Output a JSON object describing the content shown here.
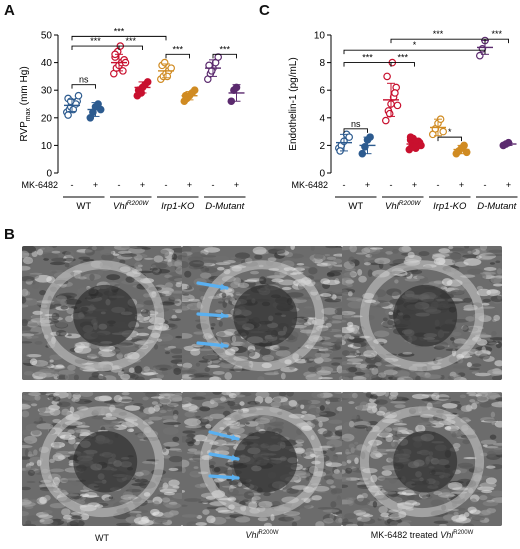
{
  "panels": {
    "a": "A",
    "b": "B",
    "c": "C"
  },
  "colors": {
    "wt": "#2d5b8f",
    "vhl": "#c8102e",
    "irp": "#d08b22",
    "dmut": "#5b2a6e"
  },
  "chart_data": [
    {
      "type": "scatter",
      "panel": "A",
      "ylabel_main": "RVP",
      "ylabel_sub": "max",
      "ylabel_unit": " (mm Hg)",
      "ylim": [
        0,
        50
      ],
      "yticks": [
        "0",
        "10",
        "20",
        "30",
        "40",
        "50"
      ],
      "treatment_label": "MK-6482",
      "treatment_signs": [
        "-",
        "+",
        "-",
        "+",
        "-",
        "+",
        "-",
        "+"
      ],
      "groups": [
        {
          "label": "WT",
          "italic": false,
          "sup": ""
        },
        {
          "label": "Vhl",
          "italic": true,
          "sup": "R200W"
        },
        {
          "label": "Irp1-KO",
          "italic": true,
          "sup": ""
        },
        {
          "label": "D-Mutant",
          "italic": true,
          "sup": ""
        }
      ],
      "series": [
        {
          "color": "wt",
          "open": true,
          "mean": 24.5,
          "sd": 2.2,
          "values": [
            22,
            23,
            24,
            25,
            26,
            27,
            24,
            23,
            25,
            28,
            21,
            26
          ]
        },
        {
          "color": "wt",
          "open": false,
          "mean": 23,
          "sd": 2.5,
          "values": [
            20,
            22,
            24,
            25,
            23
          ]
        },
        {
          "color": "vhl",
          "open": true,
          "mean": 40,
          "sd": 3,
          "values": [
            36,
            38,
            39,
            40,
            41,
            42,
            44,
            46,
            37,
            40,
            43
          ]
        },
        {
          "color": "vhl",
          "open": false,
          "mean": 31,
          "sd": 2,
          "values": [
            28,
            30,
            31,
            32,
            33,
            30,
            29
          ]
        },
        {
          "color": "irp",
          "open": true,
          "mean": 37,
          "sd": 2.5,
          "values": [
            34,
            35,
            36,
            37,
            38,
            39,
            40,
            35
          ]
        },
        {
          "color": "irp",
          "open": false,
          "mean": 28,
          "sd": 1.5,
          "values": [
            26,
            27,
            28,
            29,
            30,
            28
          ]
        },
        {
          "color": "dmut",
          "open": true,
          "mean": 38,
          "sd": 3,
          "values": [
            34,
            36,
            38,
            40,
            42,
            39,
            37
          ]
        },
        {
          "color": "dmut",
          "open": false,
          "mean": 29,
          "sd": 3,
          "values": [
            26,
            30,
            31
          ]
        }
      ],
      "brackets": [
        {
          "from": 0,
          "to": 1,
          "level": 32,
          "label": "ns"
        },
        {
          "from": 0,
          "to": 2,
          "level": 46,
          "label": "***"
        },
        {
          "from": 0,
          "to": 4,
          "level": 49.5,
          "label": "***"
        },
        {
          "from": 2,
          "to": 3,
          "level": 46,
          "label": "***"
        },
        {
          "from": 4,
          "to": 5,
          "level": 43,
          "label": "***"
        },
        {
          "from": 6,
          "to": 7,
          "level": 43,
          "label": "***"
        }
      ]
    },
    {
      "type": "scatter",
      "panel": "C",
      "ylabel_main": "Endothelin-1 (pg/mL)",
      "ylim": [
        0,
        10
      ],
      "yticks": [
        "0",
        "2",
        "4",
        "6",
        "8",
        "10"
      ],
      "treatment_label": "MK-6482",
      "treatment_signs": [
        "-",
        "+",
        "-",
        "+",
        "-",
        "+",
        "-",
        "+"
      ],
      "groups": [
        {
          "label": "WT",
          "italic": false,
          "sup": ""
        },
        {
          "label": "Vhl",
          "italic": true,
          "sup": "R200W"
        },
        {
          "label": "Irp1-KO",
          "italic": true,
          "sup": ""
        },
        {
          "label": "D-Mutant",
          "italic": true,
          "sup": ""
        }
      ],
      "series": [
        {
          "color": "wt",
          "open": true,
          "mean": 2.2,
          "sd": 0.6,
          "values": [
            1.8,
            2.0,
            2.3,
            2.8,
            2.6,
            1.6
          ]
        },
        {
          "color": "wt",
          "open": false,
          "mean": 2.0,
          "sd": 0.6,
          "values": [
            1.4,
            1.9,
            2.4,
            2.6
          ]
        },
        {
          "color": "vhl",
          "open": true,
          "mean": 5.3,
          "sd": 1.2,
          "values": [
            3.8,
            4.5,
            5.0,
            5.5,
            6.2,
            7.0,
            4.3,
            8.0,
            5.8,
            4.9
          ]
        },
        {
          "color": "vhl",
          "open": false,
          "mean": 2.1,
          "sd": 0.4,
          "values": [
            1.7,
            1.9,
            2.0,
            2.1,
            2.2,
            2.4,
            2.5,
            1.8,
            2.3,
            2.0,
            2.6
          ]
        },
        {
          "color": "irp",
          "open": true,
          "mean": 3.3,
          "sd": 0.6,
          "values": [
            2.8,
            3.2,
            3.6,
            3.9,
            3.0
          ]
        },
        {
          "color": "irp",
          "open": false,
          "mean": 1.7,
          "sd": 0.3,
          "values": [
            1.4,
            1.6,
            1.8,
            2.0,
            1.5
          ]
        },
        {
          "color": "dmut",
          "open": true,
          "mean": 9.1,
          "sd": 0.5,
          "values": [
            8.5,
            9.0,
            9.6
          ]
        },
        {
          "color": "dmut",
          "open": false,
          "mean": 2.1,
          "sd": 0.1,
          "values": [
            2.0,
            2.1,
            2.2
          ]
        }
      ],
      "brackets": [
        {
          "from": 0,
          "to": 1,
          "level": 3.2,
          "label": "ns"
        },
        {
          "from": 0,
          "to": 2,
          "level": 8.0,
          "label": "***"
        },
        {
          "from": 0,
          "to": 6,
          "level": 8.9,
          "label": "*"
        },
        {
          "from": 2,
          "to": 3,
          "level": 8.0,
          "label": "***"
        },
        {
          "from": 2,
          "to": 6,
          "level": 9.7,
          "label": "***"
        },
        {
          "from": 4,
          "to": 5,
          "level": 2.6,
          "label": "*"
        },
        {
          "from": 6,
          "to": 7,
          "level": 9.7,
          "label": "***"
        }
      ]
    }
  ],
  "echo_captions": [
    {
      "main": "WT",
      "italic": "",
      "sup": ""
    },
    {
      "main": "",
      "italic": "Vhl",
      "sup": "R200W"
    },
    {
      "main": "MK-6482 treated ",
      "italic": "Vhl",
      "sup": "R200W"
    }
  ]
}
